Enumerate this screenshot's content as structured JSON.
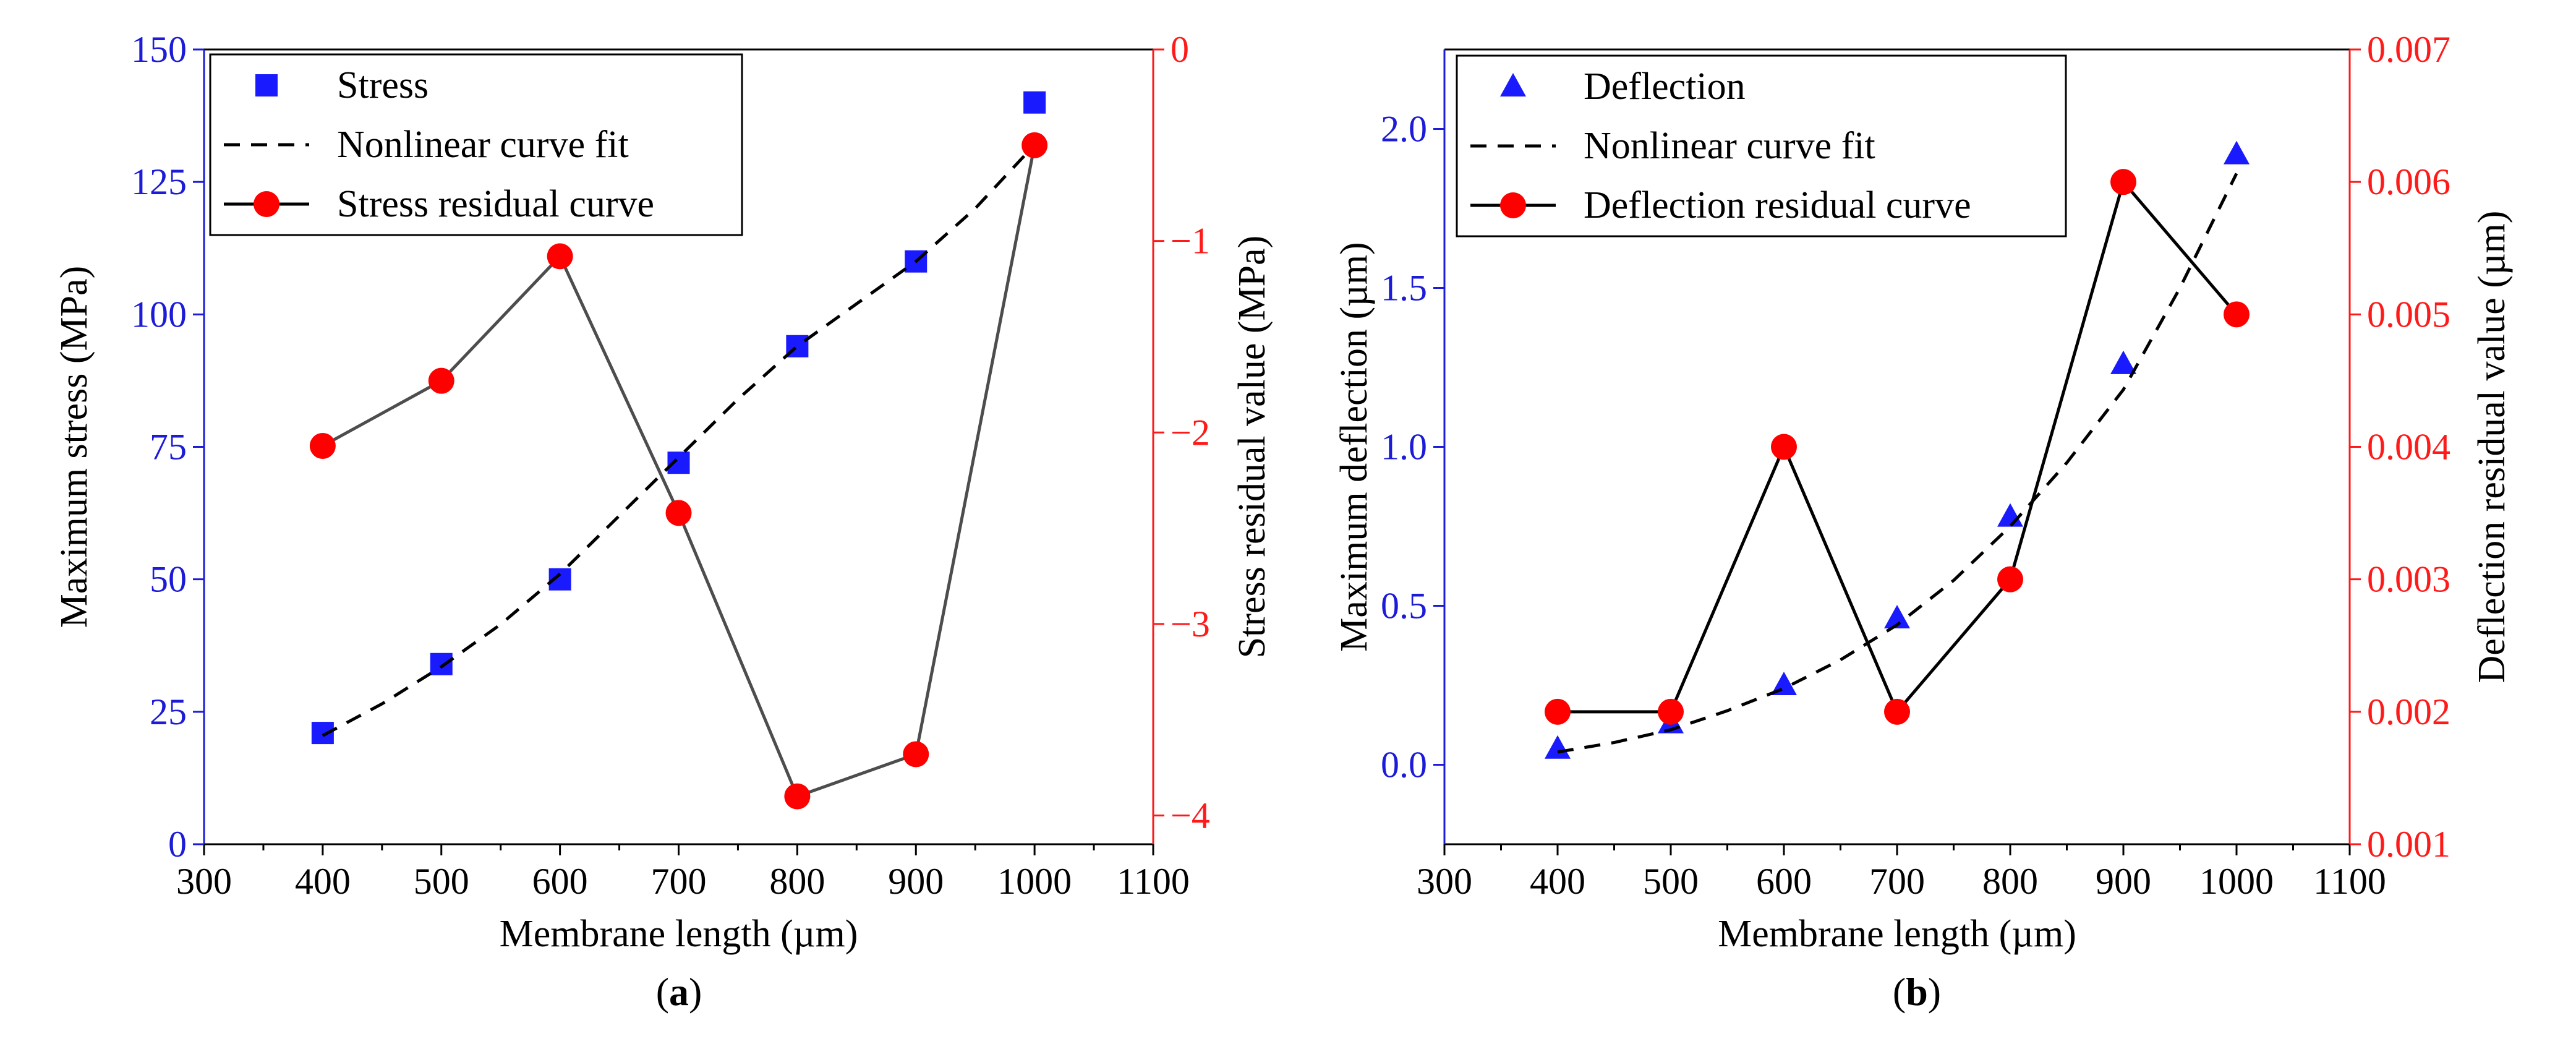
{
  "figure": {
    "colors": {
      "left_axis": "#1b1bd8",
      "right_axis": "#ff1a1a",
      "primary_marker": "#1a1aff",
      "residual_marker": "#ff0000",
      "residual_line_a": "#4d4d4d",
      "residual_line_b": "#000000",
      "fit_line": "#000000",
      "frame": "#000000",
      "background": "#ffffff"
    }
  },
  "chart_data": [
    {
      "id": "a",
      "type": "scatter",
      "caption_letter": "a",
      "xlabel": "Membrane length (µm)",
      "ylabel": "Maximum stress (MPa)",
      "y2label": "Stress residual value (MPa)",
      "xlim": [
        300,
        1100
      ],
      "ylim": [
        0,
        150
      ],
      "y2lim": [
        -4.15,
        0
      ],
      "xticks": [
        300,
        400,
        500,
        600,
        700,
        800,
        900,
        1000,
        1100
      ],
      "xtick_labels": [
        "300",
        "400",
        "500",
        "600",
        "700",
        "800",
        "900",
        "1000",
        "1100"
      ],
      "yticks": [
        0,
        25,
        50,
        75,
        100,
        125,
        150
      ],
      "ytick_labels": [
        "0",
        "25",
        "50",
        "75",
        "100",
        "125",
        "150"
      ],
      "y2ticks": [
        -4,
        -3,
        -2,
        -1,
        0
      ],
      "y2tick_labels": [
        "−4",
        "−3",
        "−2",
        "−1",
        "0"
      ],
      "legend_position": "top-left",
      "series": [
        {
          "name": "Stress",
          "kind": "marker",
          "marker": "square",
          "axis": "left",
          "x": [
            400,
            500,
            600,
            700,
            800,
            900,
            1000
          ],
          "y": [
            21,
            34,
            50,
            72,
            94,
            110,
            140
          ]
        },
        {
          "name": "Nonlinear curve fit",
          "kind": "dashed-line",
          "axis": "left",
          "x": [
            400,
            450,
            500,
            550,
            600,
            650,
            700,
            750,
            800,
            850,
            900,
            950,
            1000
          ],
          "y": [
            20.5,
            26.5,
            33.5,
            41.5,
            51,
            62,
            73,
            84,
            94,
            102,
            110,
            120,
            132
          ]
        },
        {
          "name": "Stress residual curve",
          "kind": "line-marker",
          "marker": "circle",
          "axis": "right",
          "x": [
            400,
            500,
            600,
            700,
            800,
            900,
            1000
          ],
          "y": [
            -2.07,
            -1.73,
            -1.08,
            -2.42,
            -3.9,
            -3.68,
            -0.5
          ]
        }
      ]
    },
    {
      "id": "b",
      "type": "scatter",
      "caption_letter": "b",
      "xlabel": "Membrane length (µm)",
      "ylabel": "Maximum deflection (µm)",
      "y2label": "Deflection residual value (µm)",
      "xlim": [
        300,
        1100
      ],
      "ylim": [
        -0.25,
        2.25
      ],
      "y2lim": [
        0.001,
        0.007
      ],
      "xticks": [
        300,
        400,
        500,
        600,
        700,
        800,
        900,
        1000,
        1100
      ],
      "xtick_labels": [
        "300",
        "400",
        "500",
        "600",
        "700",
        "800",
        "900",
        "1000",
        "1100"
      ],
      "yticks": [
        0,
        0.5,
        1,
        1.5,
        2
      ],
      "ytick_labels": [
        "0.0",
        "0.5",
        "1.0",
        "1.5",
        "2.0"
      ],
      "y2ticks": [
        0.001,
        0.002,
        0.003,
        0.004,
        0.005,
        0.006,
        0.007
      ],
      "y2tick_labels": [
        "0.001",
        "0.002",
        "0.003",
        "0.004",
        "0.005",
        "0.006",
        "0.007"
      ],
      "legend_position": "top-left",
      "series": [
        {
          "name": "Deflection",
          "kind": "marker",
          "marker": "triangle",
          "axis": "left",
          "x": [
            400,
            500,
            600,
            700,
            800,
            900,
            1000
          ],
          "y": [
            0.05,
            0.13,
            0.25,
            0.46,
            0.78,
            1.26,
            1.92
          ]
        },
        {
          "name": "Nonlinear curve fit",
          "kind": "dashed-line",
          "axis": "left",
          "x": [
            400,
            450,
            500,
            550,
            600,
            650,
            700,
            750,
            800,
            850,
            900,
            950,
            1000
          ],
          "y": [
            0.04,
            0.07,
            0.11,
            0.17,
            0.24,
            0.33,
            0.44,
            0.58,
            0.75,
            0.95,
            1.18,
            1.5,
            1.86
          ]
        },
        {
          "name": "Deflection residual curve",
          "kind": "line-marker",
          "marker": "circle",
          "axis": "right",
          "x": [
            400,
            500,
            600,
            700,
            800,
            900,
            1000
          ],
          "y": [
            0.002,
            0.002,
            0.004,
            0.002,
            0.003,
            0.006,
            0.005
          ]
        }
      ]
    }
  ]
}
